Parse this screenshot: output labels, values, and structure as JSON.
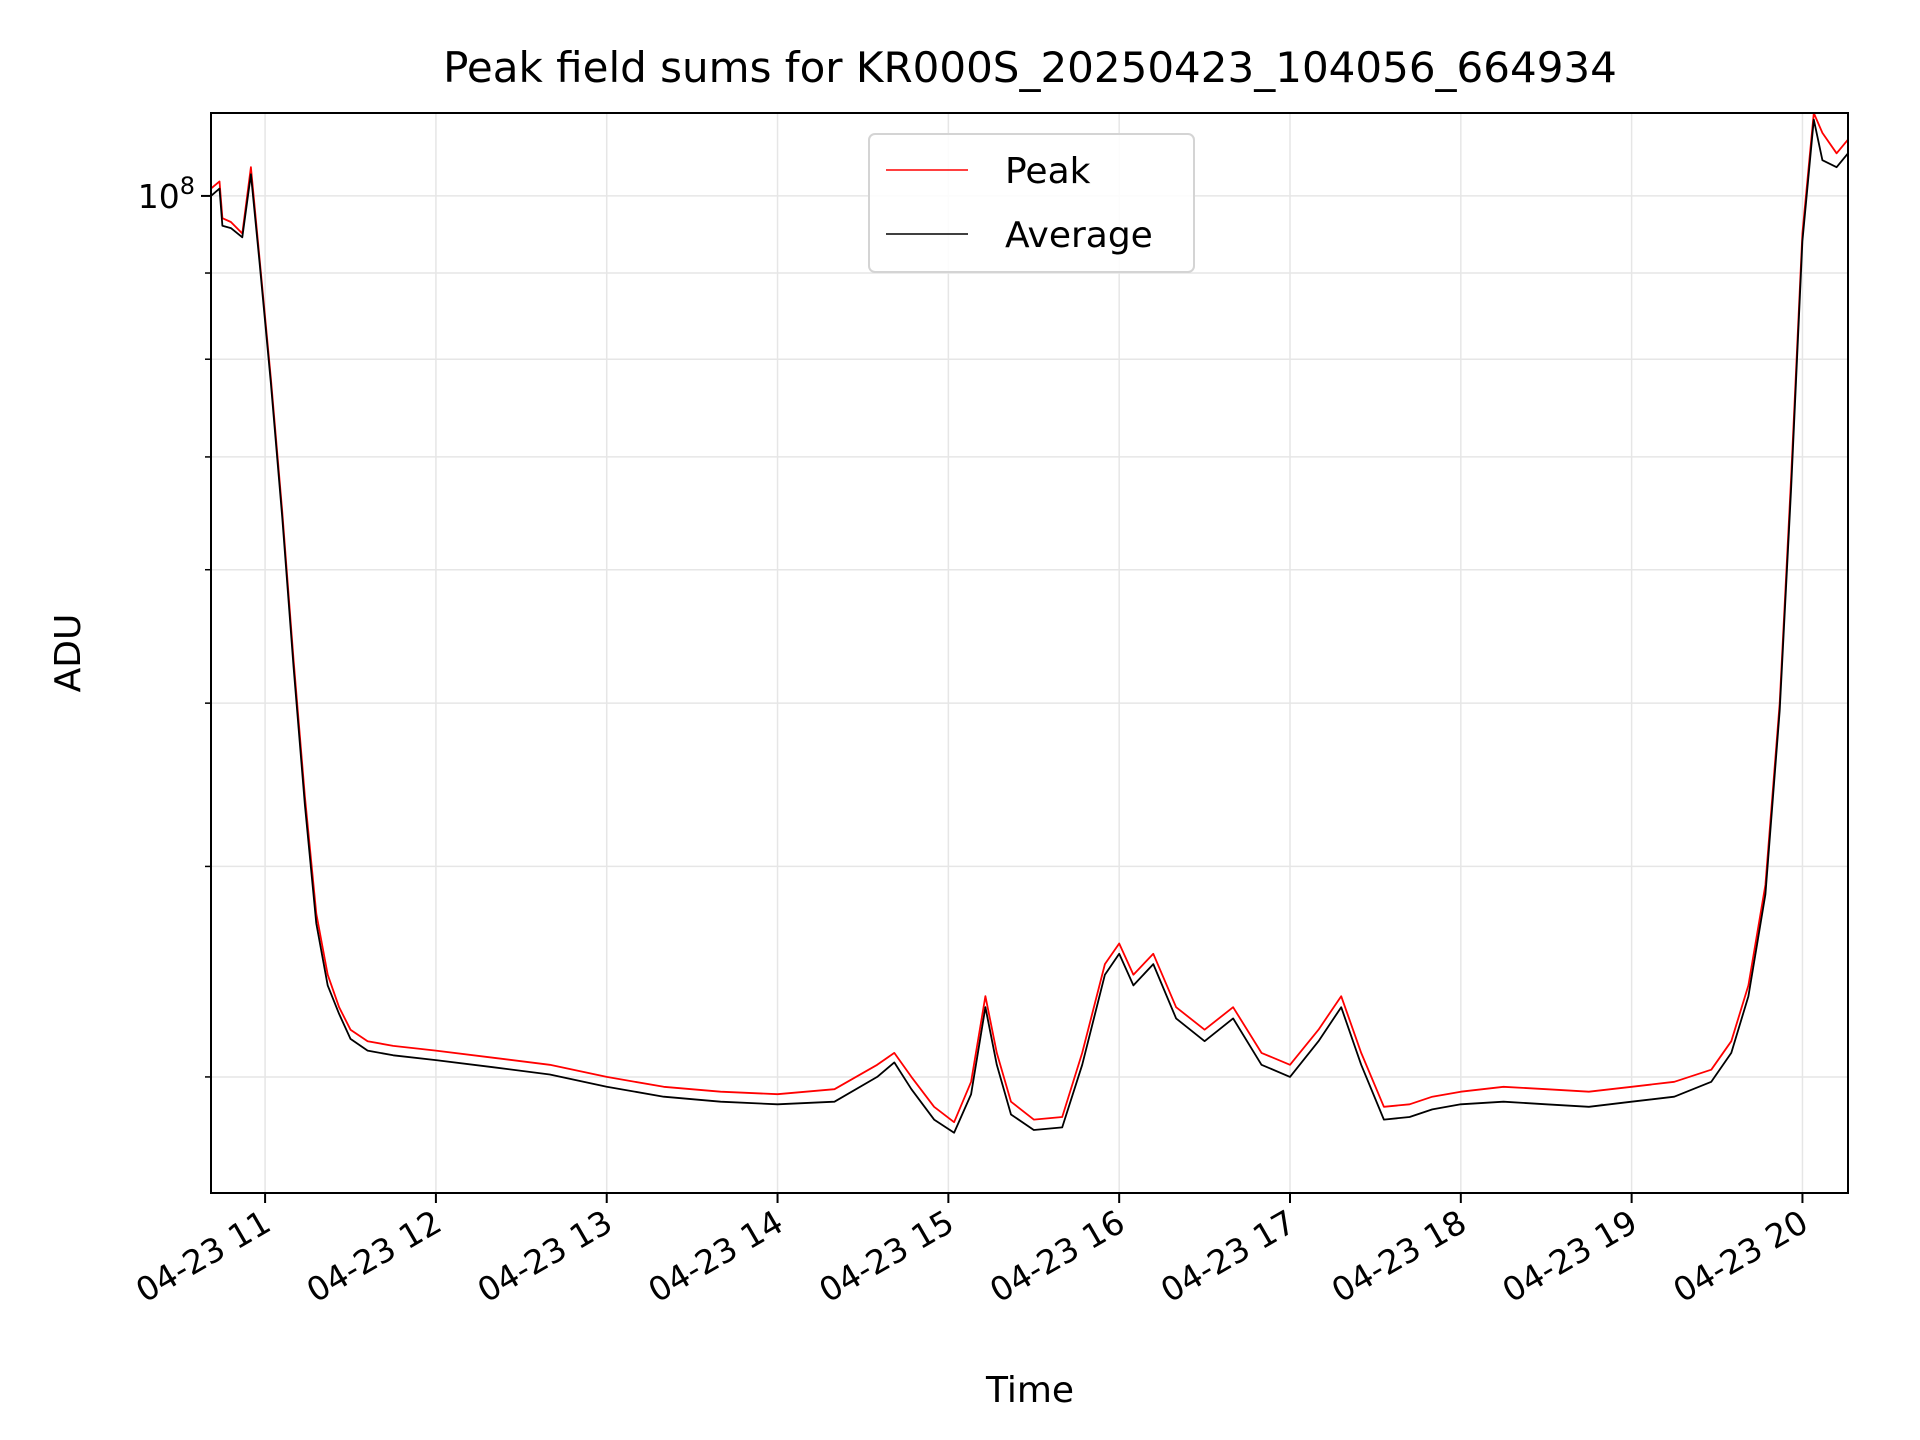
{
  "chart_data": {
    "type": "line",
    "title": "Peak field sums for KR000S_20250423_104056_664934",
    "xlabel": "Time",
    "ylabel": "ADU",
    "yscale": "log",
    "grid": true,
    "legend_position": "upper center",
    "x_ticks": [
      "04-23 11",
      "04-23 12",
      "04-23 13",
      "04-23 14",
      "04-23 15",
      "04-23 16",
      "04-23 17",
      "04-23 18",
      "04-23 19",
      "04-23 20"
    ],
    "y_tick_major": {
      "base": "10",
      "exponent": "8",
      "value": 100000000
    },
    "y_minor_ticks": [
      30000000,
      40000000,
      50000000,
      60000000,
      70000000,
      80000000,
      90000000
    ],
    "xlim": [
      "2025-04-23 10:41",
      "2025-04-23 20:16"
    ],
    "ylim": [
      25600000,
      112000000
    ],
    "series": [
      {
        "name": "Peak",
        "color": "#ff0000",
        "points": [
          [
            "2025-04-23 10:41",
            101000000
          ],
          [
            "2025-04-23 10:44",
            102000000
          ],
          [
            "2025-04-23 10:45",
            97000000
          ],
          [
            "2025-04-23 10:48",
            96500000
          ],
          [
            "2025-04-23 10:52",
            95000000
          ],
          [
            "2025-04-23 10:55",
            104000000
          ],
          [
            "2025-04-23 10:58",
            92000000
          ],
          [
            "2025-04-23 11:02",
            78000000
          ],
          [
            "2025-04-23 11:06",
            65000000
          ],
          [
            "2025-04-23 11:10",
            53000000
          ],
          [
            "2025-04-23 11:14",
            44000000
          ],
          [
            "2025-04-23 11:18",
            37500000
          ],
          [
            "2025-04-23 11:22",
            34500000
          ],
          [
            "2025-04-23 11:26",
            33000000
          ],
          [
            "2025-04-23 11:30",
            32000000
          ],
          [
            "2025-04-23 11:36",
            31500000
          ],
          [
            "2025-04-23 11:45",
            31300000
          ],
          [
            "2025-04-23 12:00",
            31100000
          ],
          [
            "2025-04-23 12:20",
            30800000
          ],
          [
            "2025-04-23 12:40",
            30500000
          ],
          [
            "2025-04-23 13:00",
            30000000
          ],
          [
            "2025-04-23 13:20",
            29600000
          ],
          [
            "2025-04-23 13:40",
            29400000
          ],
          [
            "2025-04-23 14:00",
            29300000
          ],
          [
            "2025-04-23 14:20",
            29500000
          ],
          [
            "2025-04-23 14:35",
            30500000
          ],
          [
            "2025-04-23 14:41",
            31000000
          ],
          [
            "2025-04-23 14:47",
            30000000
          ],
          [
            "2025-04-23 14:55",
            28800000
          ],
          [
            "2025-04-23 15:02",
            28200000
          ],
          [
            "2025-04-23 15:08",
            29800000
          ],
          [
            "2025-04-23 15:13",
            33500000
          ],
          [
            "2025-04-23 15:17",
            31000000
          ],
          [
            "2025-04-23 15:22",
            29000000
          ],
          [
            "2025-04-23 15:30",
            28300000
          ],
          [
            "2025-04-23 15:40",
            28400000
          ],
          [
            "2025-04-23 15:47",
            31000000
          ],
          [
            "2025-04-23 15:55",
            35000000
          ],
          [
            "2025-04-23 16:00",
            36000000
          ],
          [
            "2025-04-23 16:05",
            34500000
          ],
          [
            "2025-04-23 16:12",
            35500000
          ],
          [
            "2025-04-23 16:20",
            33000000
          ],
          [
            "2025-04-23 16:30",
            32000000
          ],
          [
            "2025-04-23 16:40",
            33000000
          ],
          [
            "2025-04-23 16:50",
            31000000
          ],
          [
            "2025-04-23 17:00",
            30500000
          ],
          [
            "2025-04-23 17:10",
            32000000
          ],
          [
            "2025-04-23 17:18",
            33500000
          ],
          [
            "2025-04-23 17:25",
            31000000
          ],
          [
            "2025-04-23 17:33",
            28800000
          ],
          [
            "2025-04-23 17:42",
            28900000
          ],
          [
            "2025-04-23 17:50",
            29200000
          ],
          [
            "2025-04-23 18:00",
            29400000
          ],
          [
            "2025-04-23 18:15",
            29600000
          ],
          [
            "2025-04-23 18:30",
            29500000
          ],
          [
            "2025-04-23 18:45",
            29400000
          ],
          [
            "2025-04-23 19:00",
            29600000
          ],
          [
            "2025-04-23 19:15",
            29800000
          ],
          [
            "2025-04-23 19:28",
            30300000
          ],
          [
            "2025-04-23 19:35",
            31500000
          ],
          [
            "2025-04-23 19:41",
            34000000
          ],
          [
            "2025-04-23 19:47",
            39000000
          ],
          [
            "2025-04-23 19:52",
            50000000
          ],
          [
            "2025-04-23 19:56",
            68000000
          ],
          [
            "2025-04-23 20:00",
            95000000
          ],
          [
            "2025-04-23 20:04",
            112000000
          ],
          [
            "2025-04-23 20:07",
            109000000
          ],
          [
            "2025-04-23 20:12",
            106000000
          ],
          [
            "2025-04-23 20:16",
            108000000
          ]
        ]
      },
      {
        "name": "Average",
        "color": "#000000",
        "points": [
          [
            "2025-04-23 10:41",
            100000000
          ],
          [
            "2025-04-23 10:44",
            101000000
          ],
          [
            "2025-04-23 10:45",
            96000000
          ],
          [
            "2025-04-23 10:48",
            95700000
          ],
          [
            "2025-04-23 10:52",
            94500000
          ],
          [
            "2025-04-23 10:55",
            103000000
          ],
          [
            "2025-04-23 10:58",
            91500000
          ],
          [
            "2025-04-23 11:02",
            77500000
          ],
          [
            "2025-04-23 11:06",
            64500000
          ],
          [
            "2025-04-23 11:10",
            52500000
          ],
          [
            "2025-04-23 11:14",
            43500000
          ],
          [
            "2025-04-23 11:18",
            37000000
          ],
          [
            "2025-04-23 11:22",
            34000000
          ],
          [
            "2025-04-23 11:26",
            32700000
          ],
          [
            "2025-04-23 11:30",
            31600000
          ],
          [
            "2025-04-23 11:36",
            31100000
          ],
          [
            "2025-04-23 11:45",
            30900000
          ],
          [
            "2025-04-23 12:00",
            30700000
          ],
          [
            "2025-04-23 12:20",
            30400000
          ],
          [
            "2025-04-23 12:40",
            30100000
          ],
          [
            "2025-04-23 13:00",
            29600000
          ],
          [
            "2025-04-23 13:20",
            29200000
          ],
          [
            "2025-04-23 13:40",
            29000000
          ],
          [
            "2025-04-23 14:00",
            28900000
          ],
          [
            "2025-04-23 14:20",
            29000000
          ],
          [
            "2025-04-23 14:35",
            30000000
          ],
          [
            "2025-04-23 14:41",
            30600000
          ],
          [
            "2025-04-23 14:47",
            29500000
          ],
          [
            "2025-04-23 14:55",
            28300000
          ],
          [
            "2025-04-23 15:02",
            27800000
          ],
          [
            "2025-04-23 15:08",
            29300000
          ],
          [
            "2025-04-23 15:13",
            33000000
          ],
          [
            "2025-04-23 15:17",
            30500000
          ],
          [
            "2025-04-23 15:22",
            28500000
          ],
          [
            "2025-04-23 15:30",
            27900000
          ],
          [
            "2025-04-23 15:40",
            28000000
          ],
          [
            "2025-04-23 15:47",
            30500000
          ],
          [
            "2025-04-23 15:55",
            34500000
          ],
          [
            "2025-04-23 16:00",
            35500000
          ],
          [
            "2025-04-23 16:05",
            34000000
          ],
          [
            "2025-04-23 16:12",
            35000000
          ],
          [
            "2025-04-23 16:20",
            32500000
          ],
          [
            "2025-04-23 16:30",
            31500000
          ],
          [
            "2025-04-23 16:40",
            32500000
          ],
          [
            "2025-04-23 16:50",
            30500000
          ],
          [
            "2025-04-23 17:00",
            30000000
          ],
          [
            "2025-04-23 17:10",
            31500000
          ],
          [
            "2025-04-23 17:18",
            33000000
          ],
          [
            "2025-04-23 17:25",
            30500000
          ],
          [
            "2025-04-23 17:33",
            28300000
          ],
          [
            "2025-04-23 17:42",
            28400000
          ],
          [
            "2025-04-23 17:50",
            28700000
          ],
          [
            "2025-04-23 18:00",
            28900000
          ],
          [
            "2025-04-23 18:15",
            29000000
          ],
          [
            "2025-04-23 18:30",
            28900000
          ],
          [
            "2025-04-23 18:45",
            28800000
          ],
          [
            "2025-04-23 19:00",
            29000000
          ],
          [
            "2025-04-23 19:15",
            29200000
          ],
          [
            "2025-04-23 19:28",
            29800000
          ],
          [
            "2025-04-23 19:35",
            31000000
          ],
          [
            "2025-04-23 19:41",
            33500000
          ],
          [
            "2025-04-23 19:47",
            38500000
          ],
          [
            "2025-04-23 19:52",
            49500000
          ],
          [
            "2025-04-23 19:56",
            67000000
          ],
          [
            "2025-04-23 20:00",
            94000000
          ],
          [
            "2025-04-23 20:04",
            111000000
          ],
          [
            "2025-04-23 20:07",
            105000000
          ],
          [
            "2025-04-23 20:12",
            104000000
          ],
          [
            "2025-04-23 20:16",
            106000000
          ]
        ]
      }
    ]
  }
}
